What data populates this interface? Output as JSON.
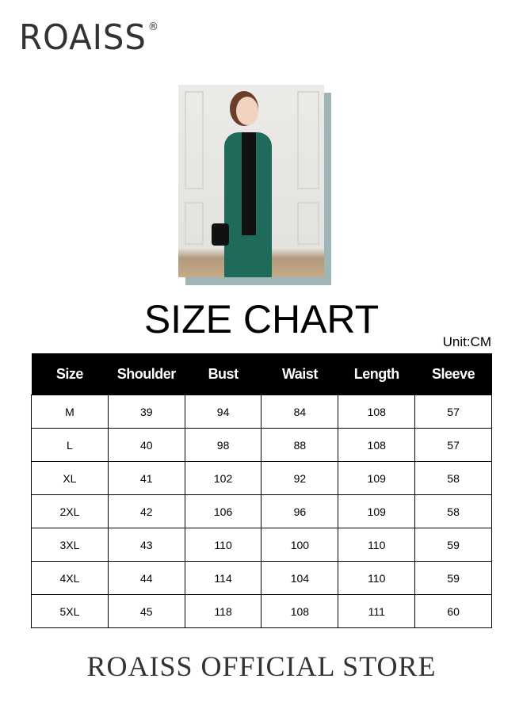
{
  "brand": {
    "logo": "ROAISS",
    "registered": "®"
  },
  "title": "SIZE CHART",
  "unit": "Unit:CM",
  "table": {
    "headers": [
      "Size",
      "Shoulder",
      "Bust",
      "Waist",
      "Length",
      "Sleeve"
    ],
    "rows": [
      [
        "M",
        "39",
        "94",
        "84",
        "108",
        "57"
      ],
      [
        "L",
        "40",
        "98",
        "88",
        "108",
        "57"
      ],
      [
        "XL",
        "41",
        "102",
        "92",
        "109",
        "58"
      ],
      [
        "2XL",
        "42",
        "106",
        "96",
        "109",
        "58"
      ],
      [
        "3XL",
        "43",
        "110",
        "100",
        "110",
        "59"
      ],
      [
        "4XL",
        "44",
        "114",
        "104",
        "110",
        "59"
      ],
      [
        "5XL",
        "45",
        "118",
        "108",
        "111",
        "60"
      ]
    ]
  },
  "footer": "ROAISS OFFICIAL STORE",
  "colors": {
    "coat": "#1e6b5b",
    "shadow": "#9fb5b8"
  }
}
